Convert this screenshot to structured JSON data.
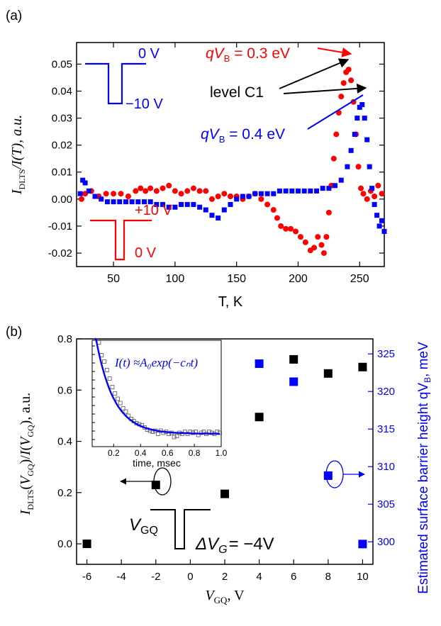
{
  "colors": {
    "red": "#ff0000",
    "blue": "#0000ff",
    "black": "#000000",
    "gray": "#666666"
  },
  "chart_data": [
    {
      "panel": "(a)",
      "type": "scatter",
      "xlabel": "T, K",
      "ylabel": {
        "italic_I": "I",
        "sub": "DLTS",
        "rest": "/I(T), a.u."
      },
      "xlim": [
        20,
        270
      ],
      "ylim": [
        -0.025,
        0.058
      ],
      "xticks": [
        50,
        100,
        150,
        200,
        250
      ],
      "xtick_labels": [
        "50",
        "100",
        "150",
        "200",
        "250"
      ],
      "yticks": [
        -0.02,
        -0.01,
        0.0,
        0.01,
        0.02,
        0.03,
        0.04,
        0.05
      ],
      "ytick_labels": [
        "-0.02",
        "-0.01",
        "0.00",
        "0.01",
        "0.02",
        "0.03",
        "0.04",
        "0.05"
      ],
      "annotations": {
        "level": "level C1",
        "red_pulse_top": "+10 V",
        "red_pulse_bottom": "0 V",
        "blue_pulse_top": "0 V",
        "blue_pulse_bottom": "−10 V",
        "red_label": {
          "q": "qV",
          "sub": "B",
          "value": " = 0.3 eV"
        },
        "blue_label": {
          "q": "qV",
          "sub": "B",
          "value": " = 0.4 eV"
        }
      },
      "series": [
        {
          "name": "qV_B = 0.3 eV",
          "color": "red",
          "marker": "circle",
          "points": [
            [
              24,
              0.0
            ],
            [
              27,
              0.002
            ],
            [
              32,
              0.003
            ],
            [
              38,
              0.001
            ],
            [
              44,
              0.002
            ],
            [
              50,
              0.002
            ],
            [
              56,
              0.002
            ],
            [
              62,
              0.001
            ],
            [
              68,
              0.003
            ],
            [
              72,
              0.004
            ],
            [
              76,
              0.003
            ],
            [
              80,
              0.004
            ],
            [
              85,
              0.003
            ],
            [
              90,
              0.004
            ],
            [
              95,
              0.005
            ],
            [
              100,
              0.003
            ],
            [
              105,
              0.002
            ],
            [
              110,
              0.003
            ],
            [
              115,
              0.004
            ],
            [
              120,
              0.003
            ],
            [
              125,
              0.003
            ],
            [
              130,
              0.0
            ],
            [
              135,
              0.001
            ],
            [
              140,
              0.002
            ],
            [
              145,
              0.001
            ],
            [
              150,
              0.001
            ],
            [
              155,
              0.0
            ],
            [
              160,
              0.001
            ],
            [
              165,
              0.002
            ],
            [
              170,
              0.0
            ],
            [
              175,
              -0.002
            ],
            [
              180,
              -0.004
            ],
            [
              183,
              -0.007
            ],
            [
              186,
              -0.01
            ],
            [
              190,
              -0.011
            ],
            [
              194,
              -0.011
            ],
            [
              198,
              -0.012
            ],
            [
              202,
              -0.014
            ],
            [
              206,
              -0.016
            ],
            [
              210,
              -0.019
            ],
            [
              213,
              -0.018
            ],
            [
              216,
              -0.014
            ],
            [
              219,
              -0.017
            ],
            [
              221,
              -0.02
            ],
            [
              223,
              -0.014
            ],
            [
              225,
              -0.005
            ],
            [
              227,
              0.005
            ],
            [
              229,
              0.015
            ],
            [
              231,
              0.024
            ],
            [
              233,
              0.032
            ],
            [
              235,
              0.038
            ],
            [
              237,
              0.043
            ],
            [
              239,
              0.047
            ],
            [
              241,
              0.048
            ],
            [
              243,
              0.044
            ],
            [
              245,
              0.036
            ],
            [
              247,
              0.024
            ],
            [
              249,
              0.012
            ],
            [
              251,
              0.004
            ],
            [
              253,
              0.002
            ],
            [
              256,
              0.0
            ],
            [
              259,
              0.003
            ],
            [
              262,
              0.001
            ],
            [
              265,
              0.005
            ],
            [
              268,
              0.002
            ]
          ]
        },
        {
          "name": "qV_B = 0.4 eV",
          "color": "blue",
          "marker": "square",
          "points": [
            [
              23,
              0.002
            ],
            [
              25,
              0.007
            ],
            [
              27,
              0.006
            ],
            [
              30,
              0.003
            ],
            [
              35,
              0.001
            ],
            [
              40,
              0.0
            ],
            [
              45,
              -0.001
            ],
            [
              50,
              -0.001
            ],
            [
              55,
              -0.001
            ],
            [
              60,
              -0.001
            ],
            [
              65,
              -0.001
            ],
            [
              70,
              -0.001
            ],
            [
              75,
              -0.001
            ],
            [
              80,
              -0.001
            ],
            [
              85,
              -0.002
            ],
            [
              90,
              -0.002
            ],
            [
              95,
              -0.003
            ],
            [
              100,
              -0.003
            ],
            [
              105,
              -0.002
            ],
            [
              110,
              -0.002
            ],
            [
              115,
              -0.002
            ],
            [
              120,
              -0.003
            ],
            [
              125,
              -0.004
            ],
            [
              130,
              -0.006
            ],
            [
              135,
              -0.007
            ],
            [
              140,
              -0.004
            ],
            [
              145,
              -0.002
            ],
            [
              150,
              0.0
            ],
            [
              155,
              0.001
            ],
            [
              160,
              0.001
            ],
            [
              165,
              0.002
            ],
            [
              170,
              0.002
            ],
            [
              175,
              0.002
            ],
            [
              180,
              0.002
            ],
            [
              185,
              0.003
            ],
            [
              190,
              0.003
            ],
            [
              195,
              0.003
            ],
            [
              200,
              0.003
            ],
            [
              205,
              0.003
            ],
            [
              210,
              0.003
            ],
            [
              215,
              0.003
            ],
            [
              220,
              0.004
            ],
            [
              225,
              0.004
            ],
            [
              230,
              0.005
            ],
            [
              235,
              0.007
            ],
            [
              240,
              0.012
            ],
            [
              243,
              0.018
            ],
            [
              246,
              0.024
            ],
            [
              248,
              0.03
            ],
            [
              250,
              0.034
            ],
            [
              252,
              0.035
            ],
            [
              254,
              0.03
            ],
            [
              256,
              0.022
            ],
            [
              258,
              0.012
            ],
            [
              260,
              0.004
            ],
            [
              262,
              -0.002
            ],
            [
              264,
              -0.006
            ],
            [
              266,
              -0.01
            ],
            [
              268,
              -0.008
            ],
            [
              270,
              -0.012
            ]
          ]
        }
      ]
    },
    {
      "panel": "(b)",
      "type": "scatter",
      "xlabel": {
        "main": "V",
        "sub": "GQ",
        "rest": ", V"
      },
      "ylabel_left": "I_DLTS(V_GQ)/I(V_GQ), a.u.",
      "ylabel_right": "Estimated surface barrier height qV_B, meV",
      "xlim": [
        -6.6,
        10.6
      ],
      "ylim_left": [
        -0.08,
        0.8
      ],
      "ylim_right": [
        297,
        327
      ],
      "xticks": [
        -6,
        -4,
        -2,
        0,
        2,
        4,
        6,
        8,
        10
      ],
      "xtick_labels": [
        "-6",
        "-4",
        "-2",
        "0",
        "2",
        "4",
        "6",
        "8",
        "10"
      ],
      "yticks_left": [
        0.0,
        0.2,
        0.4,
        0.6,
        0.8
      ],
      "ytick_labels_left": [
        "0.0",
        "0.2",
        "0.4",
        "0.6",
        "0.8"
      ],
      "yticks_right": [
        300,
        305,
        310,
        315,
        320,
        325
      ],
      "ytick_labels_right": [
        "300",
        "305",
        "310",
        "315",
        "320",
        "325"
      ],
      "annotations": {
        "vgq": "V",
        "vgq_sub": "GQ",
        "dvg": "ΔV",
        "dvg_sub": "G",
        "dvg_value": "= −4V"
      },
      "series": [
        {
          "name": "I_DLTS ratio",
          "color": "black",
          "axis": "left",
          "x": [
            -6,
            -2,
            2,
            4,
            6,
            8,
            10
          ],
          "y": [
            0.0,
            0.23,
            0.195,
            0.495,
            0.72,
            0.665,
            0.69
          ]
        },
        {
          "name": "qV_B",
          "color": "blue",
          "axis": "right",
          "x": [
            4,
            6,
            8,
            10
          ],
          "y": [
            323.7,
            321.3,
            308.8,
            299.7
          ]
        }
      ],
      "inset": {
        "formula": "I(t) ≈A₀exp(−cₙt)",
        "xlabel": "time, msec",
        "xlim": [
          0.04,
          1.0
        ],
        "ylim": [
          0,
          1
        ],
        "xticks": [
          0.2,
          0.4,
          0.6,
          0.8,
          1.0
        ],
        "xtick_labels": [
          "0.2",
          "0.4",
          "0.6",
          "0.8",
          "1.0"
        ],
        "fit": {
          "A0": 0.95,
          "cn": 7.5,
          "offset": 0.12
        },
        "points": [
          [
            0.09,
            0.98
          ],
          [
            0.11,
            0.86
          ],
          [
            0.13,
            0.8
          ],
          [
            0.15,
            0.72
          ],
          [
            0.17,
            0.64
          ],
          [
            0.19,
            0.56
          ],
          [
            0.21,
            0.5
          ],
          [
            0.23,
            0.45
          ],
          [
            0.25,
            0.41
          ],
          [
            0.27,
            0.36
          ],
          [
            0.29,
            0.33
          ],
          [
            0.31,
            0.29
          ],
          [
            0.33,
            0.26
          ],
          [
            0.35,
            0.24
          ],
          [
            0.37,
            0.22
          ],
          [
            0.39,
            0.21
          ],
          [
            0.41,
            0.2
          ],
          [
            0.43,
            0.18
          ],
          [
            0.45,
            0.16
          ],
          [
            0.47,
            0.15
          ],
          [
            0.49,
            0.14
          ],
          [
            0.51,
            0.15
          ],
          [
            0.53,
            0.12
          ],
          [
            0.55,
            0.15
          ],
          [
            0.57,
            0.13
          ],
          [
            0.59,
            0.14
          ],
          [
            0.61,
            0.12
          ],
          [
            0.63,
            0.13
          ],
          [
            0.65,
            0.09
          ],
          [
            0.67,
            0.1
          ],
          [
            0.69,
            0.13
          ],
          [
            0.71,
            0.12
          ],
          [
            0.73,
            0.14
          ],
          [
            0.75,
            0.12
          ],
          [
            0.77,
            0.14
          ],
          [
            0.79,
            0.13
          ],
          [
            0.81,
            0.14
          ],
          [
            0.83,
            0.11
          ],
          [
            0.85,
            0.13
          ],
          [
            0.87,
            0.14
          ],
          [
            0.89,
            0.12
          ],
          [
            0.91,
            0.14
          ],
          [
            0.93,
            0.13
          ],
          [
            0.95,
            0.12
          ],
          [
            0.97,
            0.14
          ],
          [
            0.99,
            0.13
          ]
        ]
      }
    }
  ]
}
